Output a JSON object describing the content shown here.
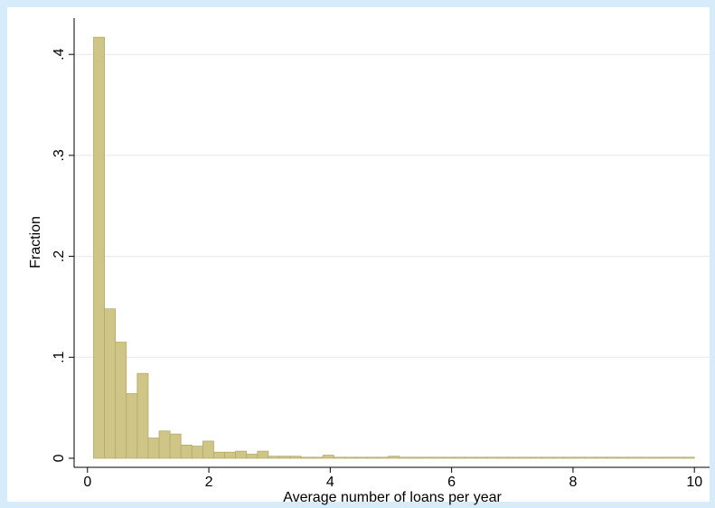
{
  "chart_data": {
    "type": "histogram",
    "xlabel": "Average number of loans per year",
    "ylabel": "Fraction",
    "bins": [
      0.1,
      0.28,
      0.46,
      0.64,
      0.82,
      1,
      1.18,
      1.36,
      1.54,
      1.72,
      1.9,
      2.08,
      2.26,
      2.44,
      2.62,
      2.8,
      2.98,
      3.16,
      3.34,
      3.52,
      3.7,
      3.88,
      4.06,
      4.24,
      4.42,
      4.6,
      4.78,
      4.96,
      5.14,
      5.32,
      5.5,
      5.68,
      5.86,
      6.04,
      6.22,
      6.4,
      6.58,
      6.76,
      6.94,
      7.12,
      7.3,
      7.48,
      7.66,
      7.84,
      8.02,
      8.2,
      8.38,
      8.56,
      8.74,
      8.92,
      9.1,
      9.28,
      9.46,
      9.64,
      9.82,
      10
    ],
    "values": [
      0.417,
      0.148,
      0.115,
      0.064,
      0.084,
      0.02,
      0.027,
      0.024,
      0.013,
      0.012,
      0.017,
      0.006,
      0.006,
      0.007,
      0.004,
      0.007,
      0.002,
      0.002,
      0.002,
      0.001,
      0.001,
      0.003,
      0.001,
      0.001,
      0.001,
      0.001,
      0.001,
      0.002,
      0.001,
      0.001,
      0.001,
      0.001,
      0.001,
      0.001,
      0.001,
      0.001,
      0.001,
      0.001,
      0.001,
      0.001,
      0.001,
      0.001,
      0.001,
      0.001,
      0.001,
      0.001,
      0.001,
      0.001,
      0.001,
      0.001,
      0.001,
      0.001,
      0.001,
      0.001,
      0.001
    ],
    "color": "#cfc587",
    "xlim": [
      -0.22,
      10.25
    ],
    "ylim": [
      -0.009,
      0.436
    ],
    "xticks": [
      0,
      2,
      4,
      6,
      8,
      10
    ],
    "yticks": [
      0,
      {
        "value": 0.1,
        "label": ".1"
      },
      {
        "value": 0.2,
        "label": ".2"
      },
      {
        "value": 0.3,
        "label": ".3"
      },
      {
        "value": 0.4,
        "label": ".4"
      }
    ],
    "grid": true
  }
}
